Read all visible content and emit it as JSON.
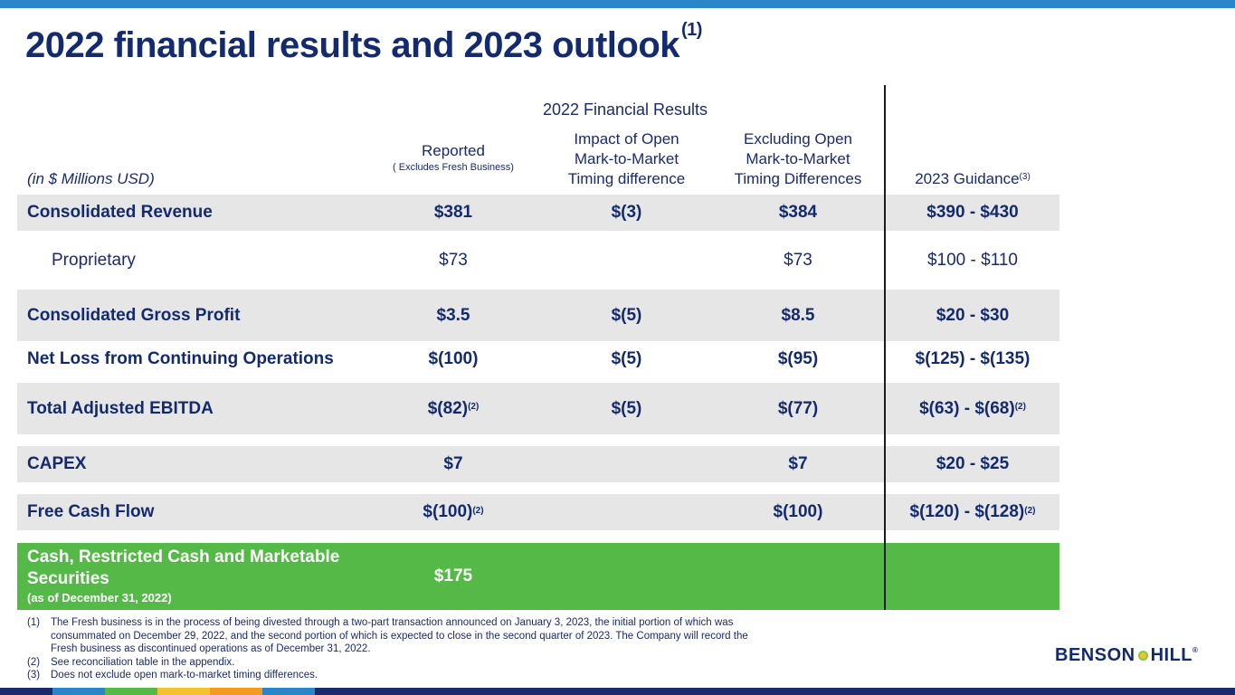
{
  "title": "2022 financial results and 2023 outlook",
  "title_footnote": "(1)",
  "header": {
    "group_label": "2022 Financial Results",
    "units": "(in $ Millions USD)",
    "reported": "Reported",
    "reported_sub": "( Excludes Fresh Business)",
    "impact_lines": [
      "Impact of Open",
      "Mark-to-Market",
      "Timing difference"
    ],
    "excluding_lines": [
      "Excluding Open",
      "Mark-to-Market",
      "Timing Differences"
    ],
    "guidance": "2023 Guidance",
    "guidance_footnote": "(3)"
  },
  "rows": [
    {
      "label": "Consolidated  Revenue",
      "reported": "$381",
      "impact": "$(3)",
      "excluding": "$384",
      "guidance": "$390 - $430"
    },
    {
      "label": "Proprietary",
      "reported": "$73",
      "impact": "",
      "excluding": "$73",
      "guidance": "$100 - $110"
    },
    {
      "label": "Consolidated Gross Profit",
      "reported": "$3.5",
      "impact": "$(5)",
      "excluding": "$8.5",
      "guidance": "$20 - $30"
    },
    {
      "label": "Net Loss from Continuing Operations",
      "reported": "$(100)",
      "impact": "$(5)",
      "excluding": "$(95)",
      "guidance": "$(125) - $(135)"
    },
    {
      "label": "Total Adjusted EBITDA",
      "reported": "$(82)",
      "reported_fn": "(2)",
      "impact": "$(5)",
      "excluding": "$(77)",
      "guidance": "$(63) - $(68)",
      "guidance_fn": "(2)"
    },
    {
      "label": "CAPEX",
      "reported": "$7",
      "impact": "",
      "excluding": "$7",
      "guidance": "$20 - $25"
    },
    {
      "label": "Free Cash Flow",
      "reported": "$(100)",
      "reported_fn": "(2)",
      "impact": "",
      "excluding": "$(100)",
      "guidance": "$(120) - $(128)",
      "guidance_fn": "(2)"
    },
    {
      "label_line1": "Cash, Restricted Cash and Marketable",
      "label_line2": "Securities",
      "label_sub": "(as of December 31, 2022)",
      "reported": "$175"
    }
  ],
  "footnotes": [
    {
      "num": "(1)",
      "text": "The Fresh business is in the process of being divested through a two-part transaction announced on January 3, 2023, the initial portion of which was consummated on December 29, 2022, and the second portion of which is expected to close in the second quarter of 2023. The Company will record the Fresh business as discontinued operations as of December 31, 2022."
    },
    {
      "num": "(2)",
      "text": "See reconciliation table in the appendix."
    },
    {
      "num": "(3)",
      "text": "Does not exclude open mark-to-market timing differences."
    }
  ],
  "logo": {
    "left": "BENSON",
    "right": "HILL",
    "reg": "®"
  },
  "colors": {
    "navy": "#132a6e",
    "top_bar": "#2a86c9",
    "row_shade": "#e6e6e6",
    "green_row": "#55b947",
    "bottom_segments": [
      "#2a86c9",
      "#55b947",
      "#f2c230",
      "#f39a1f",
      "#2a86c9"
    ]
  }
}
